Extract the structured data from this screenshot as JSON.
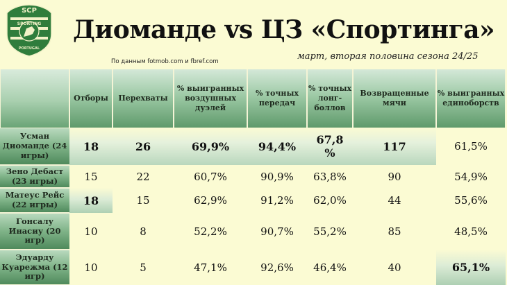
{
  "logo": {
    "top_text": "SCP",
    "word": "SPORTING",
    "country": "PORTUGAL"
  },
  "title": "Диоманде vs ЦЗ «Спортинга»",
  "subtitle": "март, вторая половина сезона 24/25",
  "source": "По данным fotmob.com и fbref.com",
  "colors": {
    "background": "#fbfbd3",
    "header_green": "#7fb388",
    "dark_green": "#4f8a5c"
  },
  "table": {
    "headers": [
      "Отборы",
      "Перехваты",
      "% выигранных воздушных дуэлей",
      "% точных передач",
      "% точных лонг-боллов",
      "Возвращенные мячи",
      "% выигранных единоборств"
    ],
    "rows": [
      {
        "player": "Усман Диоманде (24 игры)",
        "values": [
          "18",
          "26",
          "69,9%",
          "94,4%",
          "67,8 %",
          "117",
          "61,5%"
        ]
      },
      {
        "player": "Зено Дебаст (23 игры)",
        "values": [
          "15",
          "22",
          "60,7%",
          "90,9%",
          "63,8%",
          "90",
          "54,9%"
        ]
      },
      {
        "player": "Матеус Рейс (22 игры)",
        "values": [
          "18",
          "15",
          "62,9%",
          "91,2%",
          "62,0%",
          "44",
          "55,6%"
        ]
      },
      {
        "player": "Гонсалу Инасиу (20 игр)",
        "values": [
          "10",
          "8",
          "52,2%",
          "90,7%",
          "55,2%",
          "85",
          "48,5%"
        ]
      },
      {
        "player": "Эдуарду Куарежма (12 игр)",
        "values": [
          "10",
          "5",
          "47,1%",
          "92,6%",
          "46,4%",
          "40",
          "65,1%"
        ]
      }
    ]
  }
}
